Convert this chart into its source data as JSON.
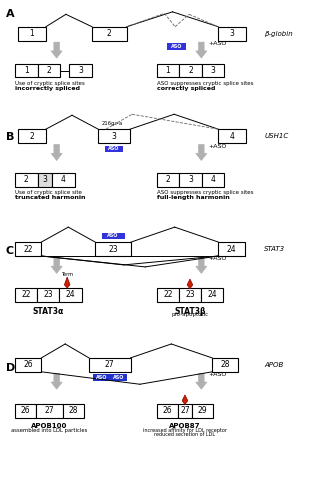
{
  "background_color": "#ffffff",
  "panel_labels": [
    "A",
    "B",
    "C",
    "D"
  ],
  "gene_labels": [
    "β-globin",
    "USH1C",
    "STAT3",
    "APOB"
  ]
}
